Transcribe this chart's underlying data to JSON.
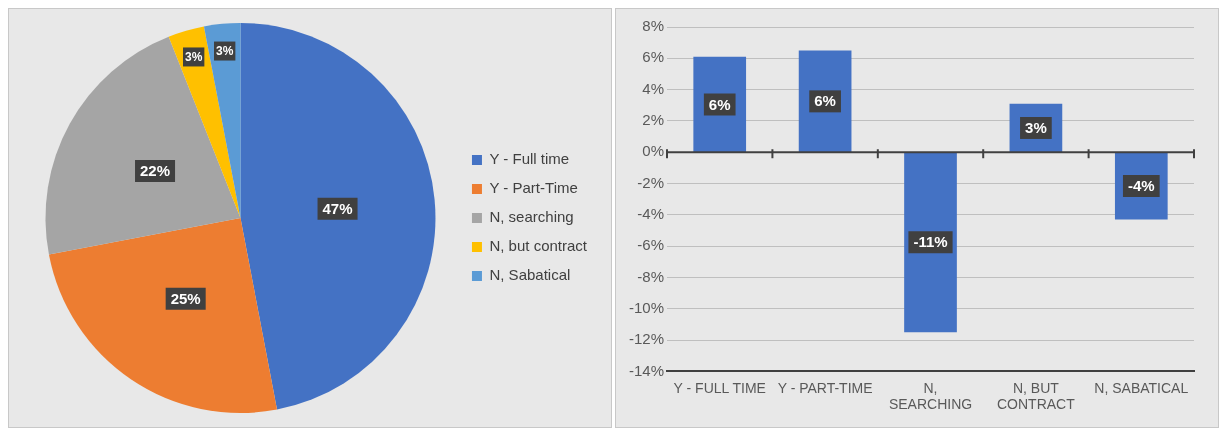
{
  "chart_data": [
    {
      "type": "pie",
      "categories": [
        "Y - Full time",
        "Y - Part-Time",
        "N, searching",
        "N, but contract",
        "N, Sabatical"
      ],
      "values": [
        47,
        25,
        22,
        3,
        3
      ],
      "colors": [
        "#4472c4",
        "#ed7d31",
        "#a5a5a5",
        "#ffc000",
        "#5b9bd5"
      ],
      "value_labels": [
        "47%",
        "25%",
        "22%",
        "3%",
        "3%"
      ],
      "legend": "right"
    },
    {
      "type": "bar",
      "categories": [
        "Y - FULL TIME",
        "Y - PART-TIME",
        "N, SEARCHING",
        "N, BUT CONTRACT",
        "N, SABATICAL"
      ],
      "values": [
        6.1,
        6.5,
        -11.5,
        3.1,
        -4.3
      ],
      "value_labels": [
        "6%",
        "6%",
        "-11%",
        "3%",
        "-4%"
      ],
      "color": "#4472c4",
      "ylim": [
        -14,
        8
      ],
      "yticks": [
        {
          "value": -14,
          "label": "-14%"
        },
        {
          "value": -12,
          "label": "-12%"
        },
        {
          "value": -10,
          "label": "-10%"
        },
        {
          "value": -8,
          "label": "-8%"
        },
        {
          "value": -6,
          "label": "-6%"
        },
        {
          "value": -4,
          "label": "-4%"
        },
        {
          "value": -2,
          "label": "-2%"
        },
        {
          "value": 0,
          "label": "0%"
        },
        {
          "value": 2,
          "label": "2%"
        },
        {
          "value": 4,
          "label": "4%"
        },
        {
          "value": 6,
          "label": "6%"
        },
        {
          "value": 8,
          "label": "8%"
        }
      ],
      "grid": "y"
    }
  ]
}
